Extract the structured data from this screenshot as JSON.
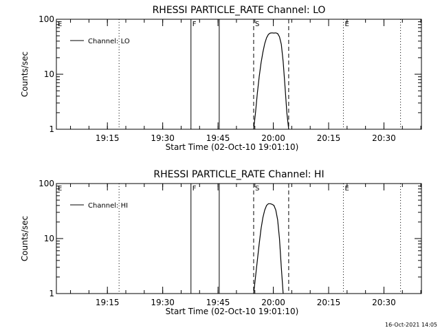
{
  "chart_data": [
    {
      "type": "line",
      "title": "RHESSI PARTICLE_RATE Channel: LO",
      "xlabel": "Start Time (02-Oct-10 19:01:10)",
      "ylabel": "Counts/sec",
      "yscale": "log",
      "xlim": [
        "19:01:10",
        "20:40:10"
      ],
      "ylim": [
        1,
        100
      ],
      "x_ticks": [
        "19:15",
        "19:30",
        "19:45",
        "20:00",
        "20:15",
        "20:30"
      ],
      "y_ticks": [
        "1",
        "10",
        "100"
      ],
      "legend": {
        "label": "Channel: LO",
        "placement": "top-left"
      },
      "markers": [
        {
          "label": "E",
          "time": "19:01:10",
          "style": "none"
        },
        {
          "label": "",
          "time": "19:18:10",
          "style": "dotted"
        },
        {
          "label": "F",
          "time": "19:37:40",
          "style": "solid"
        },
        {
          "label": "",
          "time": "19:45:20",
          "style": "solid"
        },
        {
          "label": "S",
          "time": "19:54:40",
          "style": "dashed"
        },
        {
          "label": "",
          "time": "20:04:10",
          "style": "dashed"
        },
        {
          "label": "E",
          "time": "20:19:00",
          "style": "dotted"
        },
        {
          "label": "",
          "time": "20:34:30",
          "style": "dotted"
        }
      ],
      "series": [
        {
          "name": "Channel: LO",
          "color": "#000000",
          "points": [
            [
              "19:54:40",
              1.0
            ],
            [
              "19:55:10",
              2.0
            ],
            [
              "19:55:40",
              4.5
            ],
            [
              "19:56:10",
              9.0
            ],
            [
              "19:56:40",
              16.0
            ],
            [
              "19:57:10",
              25.0
            ],
            [
              "19:57:40",
              36.0
            ],
            [
              "19:58:10",
              46.0
            ],
            [
              "19:58:40",
              53.0
            ],
            [
              "19:59:10",
              56.0
            ],
            [
              "19:59:40",
              56.5
            ],
            [
              "20:00:10",
              56.0
            ],
            [
              "20:00:40",
              56.5
            ],
            [
              "20:01:10",
              55.0
            ],
            [
              "20:01:40",
              48.0
            ],
            [
              "20:02:10",
              35.0
            ],
            [
              "20:02:40",
              17.0
            ],
            [
              "20:03:10",
              6.0
            ],
            [
              "20:03:40",
              2.0
            ],
            [
              "20:04:10",
              1.0
            ]
          ]
        }
      ]
    },
    {
      "type": "line",
      "title": "RHESSI PARTICLE_RATE Channel: HI",
      "xlabel": "Start Time (02-Oct-10 19:01:10)",
      "ylabel": "Counts/sec",
      "yscale": "log",
      "xlim": [
        "19:01:10",
        "20:40:10"
      ],
      "ylim": [
        1,
        100
      ],
      "x_ticks": [
        "19:15",
        "19:30",
        "19:45",
        "20:00",
        "20:15",
        "20:30"
      ],
      "y_ticks": [
        "1",
        "10",
        "100"
      ],
      "legend": {
        "label": "Channel: HI",
        "placement": "top-left"
      },
      "markers": [
        {
          "label": "E",
          "time": "19:01:10",
          "style": "none"
        },
        {
          "label": "",
          "time": "19:18:10",
          "style": "dotted"
        },
        {
          "label": "F",
          "time": "19:37:40",
          "style": "solid"
        },
        {
          "label": "",
          "time": "19:45:20",
          "style": "solid"
        },
        {
          "label": "S",
          "time": "19:54:40",
          "style": "dashed"
        },
        {
          "label": "",
          "time": "20:04:10",
          "style": "dashed"
        },
        {
          "label": "E",
          "time": "20:19:00",
          "style": "dotted"
        },
        {
          "label": "",
          "time": "20:34:30",
          "style": "dotted"
        }
      ],
      "series": [
        {
          "name": "Channel: HI",
          "color": "#000000",
          "points": [
            [
              "19:54:40",
              1.0
            ],
            [
              "19:55:10",
              2.0
            ],
            [
              "19:55:40",
              4.0
            ],
            [
              "19:56:10",
              8.0
            ],
            [
              "19:56:40",
              15.0
            ],
            [
              "19:57:10",
              24.0
            ],
            [
              "19:57:40",
              33.0
            ],
            [
              "19:58:10",
              40.0
            ],
            [
              "19:58:40",
              43.0
            ],
            [
              "19:59:10",
              43.0
            ],
            [
              "19:59:40",
              42.0
            ],
            [
              "20:00:10",
              40.0
            ],
            [
              "20:00:40",
              33.0
            ],
            [
              "20:01:10",
              22.0
            ],
            [
              "20:01:40",
              10.0
            ],
            [
              "20:02:10",
              3.0
            ],
            [
              "20:02:40",
              1.0
            ]
          ]
        }
      ]
    }
  ],
  "footer": {
    "timestamp": "16-Oct-2021 14:05"
  }
}
